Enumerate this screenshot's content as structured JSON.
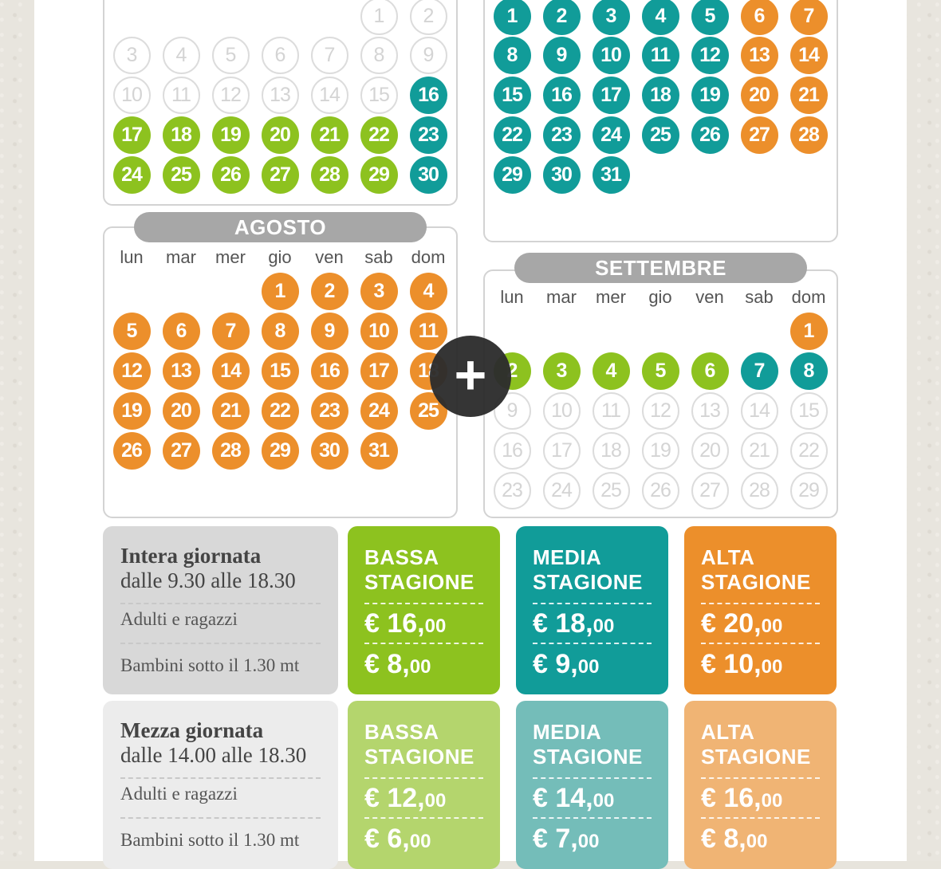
{
  "calendars": [
    {
      "id": "june",
      "title": "",
      "show_weekdays": false,
      "box": {
        "l": 129,
        "t": -40,
        "w": 445,
        "h": 298
      },
      "rows": [
        [
          null,
          null,
          null,
          null,
          null,
          {
            "d": "1",
            "c": "off"
          },
          {
            "d": "2",
            "c": "off"
          }
        ],
        [
          {
            "d": "3",
            "c": "off"
          },
          {
            "d": "4",
            "c": "off"
          },
          {
            "d": "5",
            "c": "off"
          },
          {
            "d": "6",
            "c": "off"
          },
          {
            "d": "7",
            "c": "off"
          },
          {
            "d": "8",
            "c": "off"
          },
          {
            "d": "9",
            "c": "off"
          }
        ],
        [
          {
            "d": "10",
            "c": "off"
          },
          {
            "d": "11",
            "c": "off"
          },
          {
            "d": "12",
            "c": "off"
          },
          {
            "d": "13",
            "c": "off"
          },
          {
            "d": "14",
            "c": "off"
          },
          {
            "d": "15",
            "c": "off"
          },
          {
            "d": "16",
            "c": "teal"
          }
        ],
        [
          {
            "d": "17",
            "c": "green"
          },
          {
            "d": "18",
            "c": "green"
          },
          {
            "d": "19",
            "c": "green"
          },
          {
            "d": "20",
            "c": "green"
          },
          {
            "d": "21",
            "c": "green"
          },
          {
            "d": "22",
            "c": "green"
          },
          {
            "d": "23",
            "c": "teal"
          }
        ],
        [
          {
            "d": "24",
            "c": "green"
          },
          {
            "d": "25",
            "c": "green"
          },
          {
            "d": "26",
            "c": "green"
          },
          {
            "d": "27",
            "c": "green"
          },
          {
            "d": "28",
            "c": "green"
          },
          {
            "d": "29",
            "c": "green"
          },
          {
            "d": "30",
            "c": "teal"
          }
        ]
      ]
    },
    {
      "id": "july",
      "title": "",
      "show_weekdays": false,
      "box": {
        "l": 606,
        "t": -40,
        "w": 445,
        "h": 344
      },
      "rows": [
        [
          {
            "d": "1",
            "c": "teal"
          },
          {
            "d": "2",
            "c": "teal"
          },
          {
            "d": "3",
            "c": "teal"
          },
          {
            "d": "4",
            "c": "teal"
          },
          {
            "d": "5",
            "c": "teal"
          },
          {
            "d": "6",
            "c": "orange"
          },
          {
            "d": "7",
            "c": "orange"
          }
        ],
        [
          {
            "d": "8",
            "c": "teal"
          },
          {
            "d": "9",
            "c": "teal"
          },
          {
            "d": "10",
            "c": "teal"
          },
          {
            "d": "11",
            "c": "teal"
          },
          {
            "d": "12",
            "c": "teal"
          },
          {
            "d": "13",
            "c": "orange"
          },
          {
            "d": "14",
            "c": "orange"
          }
        ],
        [
          {
            "d": "15",
            "c": "teal"
          },
          {
            "d": "16",
            "c": "teal"
          },
          {
            "d": "17",
            "c": "teal"
          },
          {
            "d": "18",
            "c": "teal"
          },
          {
            "d": "19",
            "c": "teal"
          },
          {
            "d": "20",
            "c": "orange"
          },
          {
            "d": "21",
            "c": "orange"
          }
        ],
        [
          {
            "d": "22",
            "c": "teal"
          },
          {
            "d": "23",
            "c": "teal"
          },
          {
            "d": "24",
            "c": "teal"
          },
          {
            "d": "25",
            "c": "teal"
          },
          {
            "d": "26",
            "c": "teal"
          },
          {
            "d": "27",
            "c": "orange"
          },
          {
            "d": "28",
            "c": "orange"
          }
        ],
        [
          {
            "d": "29",
            "c": "teal"
          },
          {
            "d": "30",
            "c": "teal"
          },
          {
            "d": "31",
            "c": "teal"
          },
          null,
          null,
          null,
          null
        ]
      ]
    },
    {
      "id": "august",
      "title": "AGOSTO",
      "show_weekdays": true,
      "box": {
        "l": 129,
        "t": 284,
        "w": 445,
        "h": 366
      },
      "rows": [
        [
          null,
          null,
          null,
          {
            "d": "1",
            "c": "orange"
          },
          {
            "d": "2",
            "c": "orange"
          },
          {
            "d": "3",
            "c": "orange"
          },
          {
            "d": "4",
            "c": "orange"
          }
        ],
        [
          {
            "d": "5",
            "c": "orange"
          },
          {
            "d": "6",
            "c": "orange"
          },
          {
            "d": "7",
            "c": "orange"
          },
          {
            "d": "8",
            "c": "orange"
          },
          {
            "d": "9",
            "c": "orange"
          },
          {
            "d": "10",
            "c": "orange"
          },
          {
            "d": "11",
            "c": "orange"
          }
        ],
        [
          {
            "d": "12",
            "c": "orange"
          },
          {
            "d": "13",
            "c": "orange"
          },
          {
            "d": "14",
            "c": "orange"
          },
          {
            "d": "15",
            "c": "orange"
          },
          {
            "d": "16",
            "c": "orange"
          },
          {
            "d": "17",
            "c": "orange"
          },
          {
            "d": "18",
            "c": "orange"
          }
        ],
        [
          {
            "d": "19",
            "c": "orange"
          },
          {
            "d": "20",
            "c": "orange"
          },
          {
            "d": "21",
            "c": "orange"
          },
          {
            "d": "22",
            "c": "orange"
          },
          {
            "d": "23",
            "c": "orange"
          },
          {
            "d": "24",
            "c": "orange"
          },
          {
            "d": "25",
            "c": "orange"
          }
        ],
        [
          {
            "d": "26",
            "c": "orange"
          },
          {
            "d": "27",
            "c": "orange"
          },
          {
            "d": "28",
            "c": "orange"
          },
          {
            "d": "29",
            "c": "orange"
          },
          {
            "d": "30",
            "c": "orange"
          },
          {
            "d": "31",
            "c": "orange"
          },
          null
        ]
      ]
    },
    {
      "id": "september",
      "title": "SETTEMBRE",
      "show_weekdays": true,
      "box": {
        "l": 606,
        "t": 338,
        "w": 445,
        "h": 312
      },
      "rows": [
        [
          null,
          null,
          null,
          null,
          null,
          null,
          {
            "d": "1",
            "c": "orange"
          }
        ],
        [
          {
            "d": "2",
            "c": "green"
          },
          {
            "d": "3",
            "c": "green"
          },
          {
            "d": "4",
            "c": "green"
          },
          {
            "d": "5",
            "c": "green"
          },
          {
            "d": "6",
            "c": "green"
          },
          {
            "d": "7",
            "c": "teal"
          },
          {
            "d": "8",
            "c": "teal"
          }
        ],
        [
          {
            "d": "9",
            "c": "off"
          },
          {
            "d": "10",
            "c": "off"
          },
          {
            "d": "11",
            "c": "off"
          },
          {
            "d": "12",
            "c": "off"
          },
          {
            "d": "13",
            "c": "off"
          },
          {
            "d": "14",
            "c": "off"
          },
          {
            "d": "15",
            "c": "off"
          }
        ],
        [
          {
            "d": "16",
            "c": "off"
          },
          {
            "d": "17",
            "c": "off"
          },
          {
            "d": "18",
            "c": "off"
          },
          {
            "d": "19",
            "c": "off"
          },
          {
            "d": "20",
            "c": "off"
          },
          {
            "d": "21",
            "c": "off"
          },
          {
            "d": "22",
            "c": "off"
          }
        ],
        [
          {
            "d": "23",
            "c": "off"
          },
          {
            "d": "24",
            "c": "off"
          },
          {
            "d": "25",
            "c": "off"
          },
          {
            "d": "26",
            "c": "off"
          },
          {
            "d": "27",
            "c": "off"
          },
          {
            "d": "28",
            "c": "off"
          },
          {
            "d": "29",
            "c": "off"
          }
        ]
      ]
    }
  ],
  "weekdays": [
    "lun",
    "mar",
    "mer",
    "gio",
    "ven",
    "sab",
    "dom"
  ],
  "colors": {
    "green": "#8dc21f",
    "teal": "#119c99",
    "orange": "#ec8f2b",
    "off": "#dcdcdc"
  },
  "zoom_icon": "plus-icon",
  "zoom_symbol": "+",
  "pricing": {
    "full_day": {
      "title": "Intera giornata",
      "time": "dalle 9.30 alle 18.30",
      "adults": "Adulti e ragazzi",
      "children": "Bambini sotto il 1.30 mt",
      "seasons": [
        {
          "name1": "BASSA",
          "name2": "STAGIONE",
          "adult_main": "€ 16,",
          "adult_cents": "00",
          "child_main": "€ 8,",
          "child_cents": "00"
        },
        {
          "name1": "MEDIA",
          "name2": "STAGIONE",
          "adult_main": "€ 18,",
          "adult_cents": "00",
          "child_main": "€ 9,",
          "child_cents": "00"
        },
        {
          "name1": "ALTA",
          "name2": "STAGIONE",
          "adult_main": "€ 20,",
          "adult_cents": "00",
          "child_main": "€ 10,",
          "child_cents": "00"
        }
      ]
    },
    "half_day": {
      "title": "Mezza giornata",
      "time": "dalle 14.00 alle 18.30",
      "adults": "Adulti e ragazzi",
      "children": "Bambini sotto il 1.30 mt",
      "seasons": [
        {
          "name1": "BASSA",
          "name2": "STAGIONE",
          "adult_main": "€ 12,",
          "adult_cents": "00",
          "child_main": "€ 6,",
          "child_cents": "00"
        },
        {
          "name1": "MEDIA",
          "name2": "STAGIONE",
          "adult_main": "€ 14,",
          "adult_cents": "00",
          "child_main": "€ 7,",
          "child_cents": "00"
        },
        {
          "name1": "ALTA",
          "name2": "STAGIONE",
          "adult_main": "€ 16,",
          "adult_cents": "00",
          "child_main": "€ 8,",
          "child_cents": "00"
        }
      ]
    }
  }
}
